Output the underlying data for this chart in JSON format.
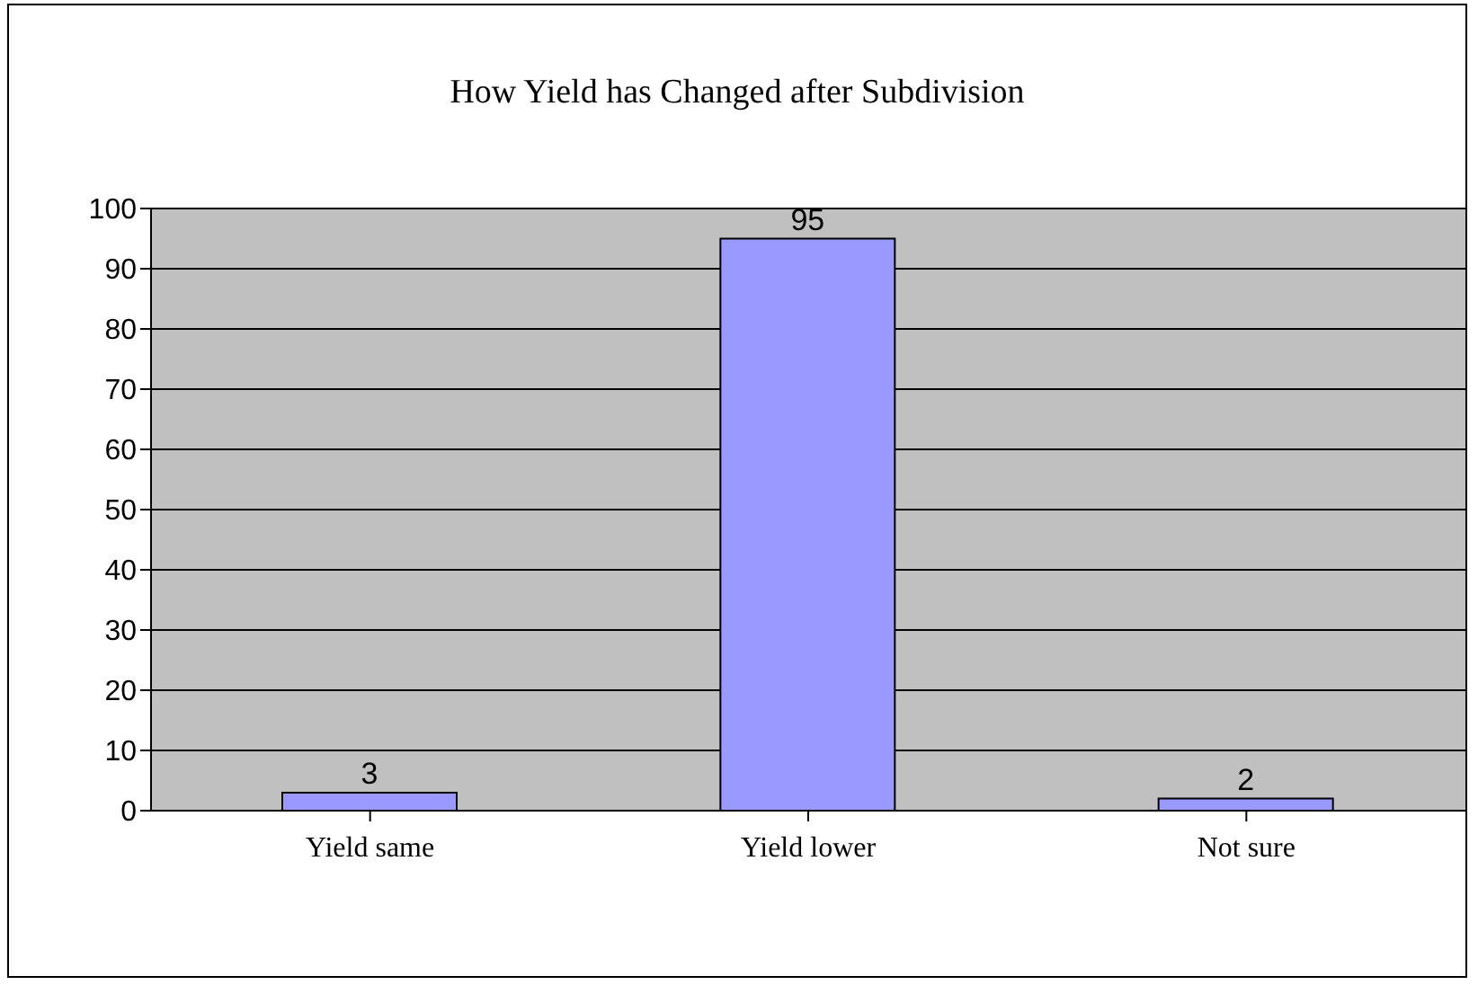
{
  "chart_data": {
    "type": "bar",
    "title": "How Yield has Changed after Subdivision",
    "categories": [
      "Yield same",
      "Yield lower",
      "Not sure"
    ],
    "values": [
      3,
      95,
      2
    ],
    "color": "#9999ff",
    "ylim": [
      0,
      100
    ],
    "yticks": [
      0,
      10,
      20,
      30,
      40,
      50,
      60,
      70,
      80,
      90,
      100
    ],
    "grid": "y",
    "data_labels": true
  }
}
